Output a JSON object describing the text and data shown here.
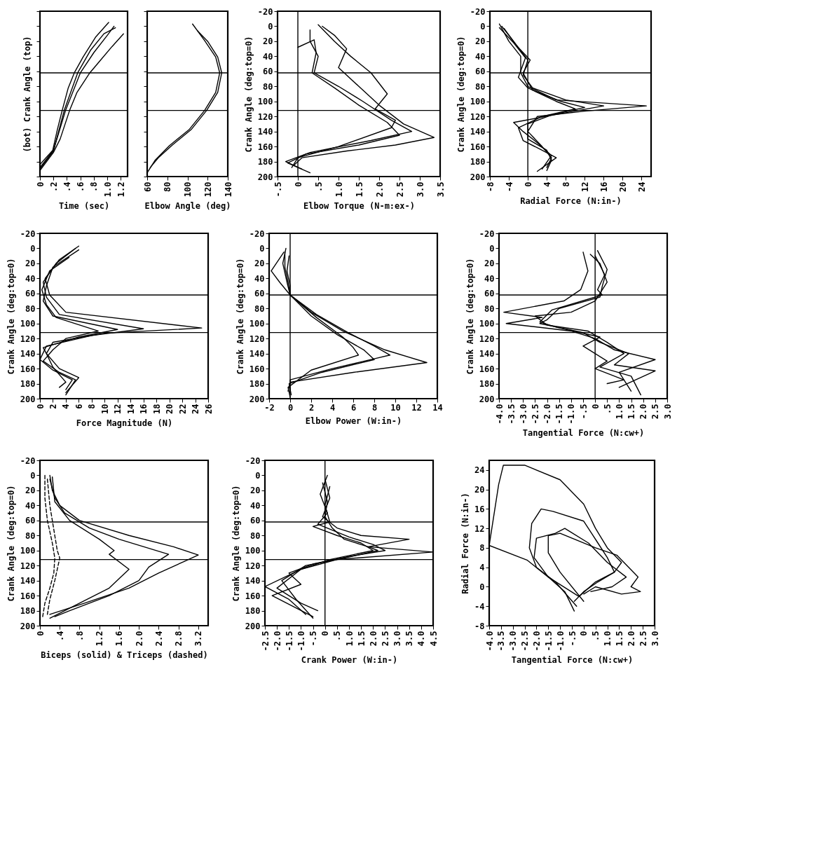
{
  "chart_data": [
    {
      "type": "line",
      "xlabel": "Time (sec)",
      "ylabel": "(bot) Crank Angle (top)",
      "xlim": [
        0,
        1.3
      ],
      "ylim": [
        200,
        -20
      ],
      "xticks": [
        0,
        {
          "value": 0.2,
          "label": ".2"
        },
        {
          "value": 0.4,
          "label": ".4"
        },
        {
          "value": 0.6,
          "label": ".6"
        },
        {
          "value": 0.8,
          "label": ".8"
        },
        {
          "value": 1,
          "label": "1.0"
        },
        {
          "value": 1.2,
          "label": "1.2"
        }
      ],
      "yticks": [
        {
          "value": -20,
          "label": null
        },
        {
          "value": 0,
          "label": null
        },
        {
          "value": 20,
          "label": null
        },
        {
          "value": 40,
          "label": null
        },
        {
          "value": 60,
          "label": null
        },
        {
          "value": 80,
          "label": null
        },
        {
          "value": 100,
          "label": null
        },
        {
          "value": 120,
          "label": null
        },
        {
          "value": 140,
          "label": null
        },
        {
          "value": 160,
          "label": null
        },
        {
          "value": 180,
          "label": null
        },
        {
          "value": 200,
          "label": null
        }
      ],
      "tick_labels": "x",
      "grid": false,
      "legend": false,
      "ref_lines": [
        {
          "axis": "y",
          "value": 62
        },
        {
          "axis": "y",
          "value": 112
        }
      ],
      "series": [
        {
          "color": "#000000",
          "x": [
            0,
            0.19,
            0.26,
            0.33,
            0.42,
            0.51,
            0.64,
            0.83,
            1.02
          ],
          "values": [
            184,
            165,
            137,
            112,
            82,
            62,
            41,
            14,
            -5
          ]
        },
        {
          "color": "#000000",
          "x": [
            0,
            0.2,
            0.3,
            0.44,
            0.55,
            0.74,
            0.9,
            1.07,
            1.24
          ],
          "values": [
            192,
            168,
            150,
            112,
            88,
            62,
            45,
            27,
            10
          ]
        },
        {
          "color": "#000000",
          "x": [
            0,
            0.2,
            0.38,
            0.6,
            0.8,
            1.0,
            1.1
          ],
          "values": [
            188,
            165,
            112,
            62,
            35,
            12,
            0
          ]
        },
        {
          "color": "#000000",
          "x": [
            0,
            0.2,
            0.36,
            0.56,
            0.75,
            0.95,
            1.12
          ],
          "values": [
            190,
            166,
            112,
            62,
            32,
            10,
            2
          ]
        }
      ]
    },
    {
      "type": "line",
      "xlabel": "Elbow Angle (deg)",
      "xlim": [
        60,
        140
      ],
      "ylim": [
        200,
        -20
      ],
      "xticks": [
        60,
        80,
        100,
        120,
        140
      ],
      "yticks": [
        {
          "value": -20,
          "label": null
        },
        {
          "value": 0,
          "label": null
        },
        {
          "value": 20,
          "label": null
        },
        {
          "value": 40,
          "label": null
        },
        {
          "value": 60,
          "label": null
        },
        {
          "value": 80,
          "label": null
        },
        {
          "value": 100,
          "label": null
        },
        {
          "value": 120,
          "label": null
        },
        {
          "value": 140,
          "label": null
        },
        {
          "value": 160,
          "label": null
        },
        {
          "value": 180,
          "label": null
        },
        {
          "value": 200,
          "label": null
        }
      ],
      "tick_labels": "x",
      "grid": false,
      "legend": false,
      "ref_lines": [
        {
          "axis": "y",
          "value": 62
        },
        {
          "axis": "y",
          "value": 112
        }
      ],
      "series": [
        {
          "color": "#000000",
          "x": [
            60,
            68,
            82,
            102,
            117,
            128,
            132,
            128,
            117,
            105
          ],
          "values": [
            195,
            178,
            159,
            137,
            112,
            88,
            62,
            41,
            19,
            -3
          ]
        },
        {
          "color": "#000000",
          "x": [
            63,
            71,
            85,
            104,
            119,
            130,
            134,
            130,
            120,
            110
          ],
          "values": [
            188,
            175,
            158,
            137,
            112,
            88,
            62,
            41,
            20,
            6
          ]
        }
      ]
    },
    {
      "type": "line",
      "xlabel": "Elbow Torque (N-m:ex-)",
      "ylabel": "Crank Angle (deg:top=0)",
      "xlim": [
        -0.5,
        3.5
      ],
      "ylim": [
        200,
        -20
      ],
      "xticks": [
        {
          "value": -0.5,
          "label": "-.5"
        },
        0,
        {
          "value": 0.5,
          "label": ".5"
        },
        {
          "value": 1,
          "label": "1.0"
        },
        1.5,
        {
          "value": 2,
          "label": "2.0"
        },
        2.5,
        {
          "value": 3,
          "label": "3.0"
        },
        3.5
      ],
      "yticks": [
        -20,
        0,
        20,
        40,
        60,
        80,
        100,
        120,
        140,
        160,
        180,
        200
      ],
      "grid": false,
      "legend": false,
      "ref_lines": [
        {
          "axis": "y",
          "value": 62
        },
        {
          "axis": "y",
          "value": 112
        },
        {
          "axis": "x",
          "value": 0
        }
      ],
      "series": [
        {
          "color": "#000000",
          "x": [
            0.6,
            0.9,
            1.2,
            1.0,
            1.5,
            2.0,
            2.6,
            3.35,
            2.4,
            1.2,
            0.1,
            -0.1
          ],
          "values": [
            0,
            12,
            30,
            55,
            80,
            105,
            130,
            148,
            158,
            166,
            175,
            185
          ]
        },
        {
          "color": "#000000",
          "x": [
            0.3,
            0.3,
            0.5,
            0.4,
            1.0,
            1.6,
            2.3,
            2.8,
            1.8,
            0.3,
            -0.3,
            0.1
          ],
          "values": [
            5,
            20,
            40,
            62,
            80,
            100,
            125,
            140,
            152,
            168,
            180,
            190
          ]
        },
        {
          "color": "#000000",
          "x": [
            0.0,
            0.4,
            0.45,
            0.35,
            0.9,
            1.5,
            2.2,
            2.5,
            1.5,
            0.2,
            -0.25,
            0.3
          ],
          "values": [
            28,
            18,
            35,
            62,
            82,
            105,
            128,
            145,
            158,
            170,
            182,
            195
          ]
        },
        {
          "color": "#000000",
          "x": [
            0.5,
            0.9,
            1.3,
            1.8,
            2.2,
            1.9,
            2.4,
            2.3,
            1.0,
            0.0,
            -0.15
          ],
          "values": [
            -2,
            20,
            40,
            62,
            90,
            110,
            125,
            135,
            160,
            175,
            188
          ]
        }
      ]
    },
    {
      "type": "line",
      "xlabel": "Radial Force (N:in-)",
      "ylabel": "Crank Angle (deg:top=0)",
      "xlim": [
        -8,
        26
      ],
      "ylim": [
        200,
        -20
      ],
      "xticks": [
        -8,
        -4,
        0,
        4,
        8,
        12,
        16,
        20,
        24
      ],
      "yticks": [
        -20,
        0,
        20,
        40,
        60,
        80,
        100,
        120,
        140,
        160,
        180,
        200
      ],
      "grid": false,
      "legend": false,
      "ref_lines": [
        {
          "axis": "y",
          "value": 62
        },
        {
          "axis": "y",
          "value": 112
        },
        {
          "axis": "x",
          "value": 0
        }
      ],
      "series": [
        {
          "color": "#000000",
          "x": [
            -6,
            -4,
            -1.5,
            -1.5,
            0,
            6,
            25,
            12,
            2,
            0,
            3,
            5,
            4
          ],
          "values": [
            -3,
            20,
            40,
            62,
            80,
            98,
            106,
            113,
            120,
            140,
            160,
            175,
            188
          ]
        },
        {
          "color": "#000000",
          "x": [
            -5.5,
            -3,
            0,
            -1,
            1,
            8,
            16,
            8,
            -3,
            -1,
            2,
            5,
            3
          ],
          "values": [
            0,
            20,
            45,
            65,
            82,
            98,
            106,
            115,
            128,
            140,
            155,
            172,
            190
          ]
        },
        {
          "color": "#000000",
          "x": [
            -5,
            -2.5,
            0.5,
            -1,
            1,
            7,
            12,
            5,
            0,
            0,
            4,
            5,
            4
          ],
          "values": [
            3,
            25,
            45,
            62,
            85,
            100,
            108,
            118,
            130,
            150,
            165,
            178,
            192
          ]
        },
        {
          "color": "#000000",
          "x": [
            -6,
            -3,
            -0.5,
            -2,
            0,
            6,
            10,
            3,
            -2,
            -1,
            3,
            6,
            2
          ],
          "values": [
            2,
            22,
            42,
            68,
            82,
            100,
            110,
            120,
            135,
            152,
            165,
            175,
            193
          ]
        }
      ]
    },
    {
      "type": "line",
      "xlabel": "Force Magnitude (N)",
      "ylabel": "Crank Angle (deg:top=0)",
      "xlim": [
        0,
        26
      ],
      "ylim": [
        200,
        -20
      ],
      "xticks": [
        0,
        2,
        4,
        6,
        8,
        10,
        12,
        14,
        16,
        18,
        20,
        22,
        24,
        26
      ],
      "yticks": [
        -20,
        0,
        20,
        40,
        60,
        80,
        100,
        120,
        140,
        160,
        180,
        200
      ],
      "grid": false,
      "legend": false,
      "ref_lines": [
        {
          "axis": "y",
          "value": 62
        },
        {
          "axis": "y",
          "value": 112
        }
      ],
      "series": [
        {
          "color": "#000000",
          "x": [
            6,
            3,
            0.8,
            1.5,
            4,
            25,
            10,
            2,
            1,
            3,
            6,
            4
          ],
          "values": [
            -3,
            15,
            40,
            62,
            85,
            106,
            113,
            125,
            140,
            160,
            172,
            192
          ]
        },
        {
          "color": "#000000",
          "x": [
            5.5,
            2.5,
            0.5,
            1,
            3,
            16,
            8,
            1,
            0,
            2,
            5,
            4
          ],
          "values": [
            0,
            20,
            45,
            65,
            88,
            107,
            116,
            130,
            148,
            162,
            175,
            188
          ]
        },
        {
          "color": "#000000",
          "x": [
            6,
            2,
            1,
            0.5,
            2,
            12,
            6,
            0.5,
            1,
            2,
            4,
            3
          ],
          "values": [
            2,
            25,
            50,
            70,
            90,
            108,
            118,
            132,
            140,
            158,
            178,
            185
          ]
        },
        {
          "color": "#000000",
          "x": [
            4.5,
            1.5,
            0.3,
            1,
            2.5,
            9,
            4,
            2,
            0.5,
            3,
            5.5,
            4
          ],
          "values": [
            12,
            30,
            55,
            75,
            92,
            110,
            120,
            135,
            150,
            165,
            175,
            195
          ]
        }
      ]
    },
    {
      "type": "line",
      "xlabel": "Elbow Power (W:in-)",
      "ylabel": "Crank Angle (deg:top=0)",
      "xlim": [
        -2,
        14
      ],
      "ylim": [
        200,
        -20
      ],
      "xticks": [
        -2,
        0,
        2,
        4,
        6,
        8,
        10,
        12,
        14
      ],
      "yticks": [
        -20,
        0,
        20,
        40,
        60,
        80,
        100,
        120,
        140,
        160,
        180,
        200
      ],
      "grid": false,
      "legend": false,
      "ref_lines": [
        {
          "axis": "y",
          "value": 62
        },
        {
          "axis": "y",
          "value": 112
        },
        {
          "axis": "x",
          "value": 0
        }
      ],
      "series": [
        {
          "color": "#000000",
          "x": [
            -0.6,
            -1.8,
            -1,
            0,
            2,
            5,
            9,
            13,
            6,
            0,
            -0.2
          ],
          "values": [
            5,
            30,
            45,
            62,
            85,
            110,
            135,
            152,
            165,
            178,
            190
          ]
        },
        {
          "color": "#000000",
          "x": [
            -0.4,
            -0.7,
            -0.3,
            0,
            2.5,
            5.5,
            8,
            9.5,
            4,
            0,
            0
          ],
          "values": [
            0,
            20,
            45,
            62,
            88,
            112,
            130,
            142,
            160,
            175,
            192
          ]
        },
        {
          "color": "#000000",
          "x": [
            -0.1,
            -0.3,
            0,
            0,
            2,
            4.5,
            7,
            8,
            3,
            -0.1,
            0.1
          ],
          "values": [
            10,
            30,
            50,
            62,
            90,
            115,
            135,
            148,
            165,
            180,
            195
          ]
        },
        {
          "color": "#000000",
          "x": [
            -0.5,
            -0.5,
            -0.2,
            0,
            2.5,
            5,
            6,
            6.5,
            2,
            -0.2,
            0
          ],
          "values": [
            5,
            25,
            45,
            62,
            92,
            118,
            132,
            142,
            162,
            185,
            198
          ]
        }
      ]
    },
    {
      "type": "line",
      "xlabel": "Tangential Force (N:cw+)",
      "ylabel": "Crank Angle (deg:top=0)",
      "xlim": [
        -4,
        3
      ],
      "ylim": [
        200,
        -20
      ],
      "xticks": [
        {
          "value": -4,
          "label": "-4.0"
        },
        -3.5,
        {
          "value": -3,
          "label": "-3.0"
        },
        -2.5,
        {
          "value": -2,
          "label": "-2.0"
        },
        -1.5,
        {
          "value": -1,
          "label": "-1.0"
        },
        {
          "value": -0.5,
          "label": "-.5"
        },
        0,
        {
          "value": 0.5,
          "label": ".5"
        },
        {
          "value": 1,
          "label": "1.0"
        },
        1.5,
        {
          "value": 2,
          "label": "2.0"
        },
        2.5,
        {
          "value": 3,
          "label": "3.0"
        }
      ],
      "yticks": [
        -20,
        0,
        20,
        40,
        60,
        80,
        100,
        120,
        140,
        160,
        180,
        200
      ],
      "grid": false,
      "legend": false,
      "ref_lines": [
        {
          "axis": "y",
          "value": 62
        },
        {
          "axis": "y",
          "value": 112
        },
        {
          "axis": "x",
          "value": 0
        }
      ],
      "series": [
        {
          "color": "#000000",
          "x": [
            -0.5,
            -0.3,
            -0.6,
            -1.3,
            -3.8,
            -2.2,
            -3.7,
            -1,
            0,
            0.8,
            2.5,
            1,
            1.5
          ],
          "values": [
            5,
            30,
            55,
            70,
            85,
            92,
            100,
            110,
            120,
            135,
            148,
            165,
            190
          ]
        },
        {
          "color": "#000000",
          "x": [
            0.1,
            0.5,
            0.3,
            0.2,
            -1.5,
            -2,
            -2.3,
            -0.5,
            0.2,
            1.4,
            0.8,
            2.5,
            1.0
          ],
          "values": [
            3,
            28,
            50,
            65,
            80,
            95,
            100,
            112,
            125,
            140,
            155,
            163,
            185
          ]
        },
        {
          "color": "#000000",
          "x": [
            -0.2,
            0.2,
            0.5,
            0,
            -1,
            -2.5,
            -2,
            -0.3,
            0.5,
            1.2,
            0.2,
            1.5,
            1.9
          ],
          "values": [
            8,
            20,
            45,
            70,
            85,
            90,
            102,
            110,
            125,
            140,
            158,
            170,
            195
          ]
        },
        {
          "color": "#000000",
          "x": [
            0,
            0.4,
            0.1,
            0.3,
            -1.8,
            -2.3,
            -1.6,
            0.2,
            -0.5,
            0.5,
            0,
            1.2,
            0.5
          ],
          "values": [
            10,
            35,
            55,
            62,
            82,
            98,
            105,
            118,
            130,
            150,
            160,
            175,
            180
          ]
        }
      ]
    },
    {
      "type": "line",
      "xlabel": "Biceps (solid) & Triceps (dashed)",
      "ylabel": "Crank Angle (deg:top=0)",
      "xlim": [
        0,
        3.4
      ],
      "ylim": [
        200,
        -20
      ],
      "xticks": [
        0,
        {
          "value": 0.4,
          "label": ".4"
        },
        {
          "value": 0.8,
          "label": ".8"
        },
        1.2,
        1.6,
        {
          "value": 2,
          "label": "2.0"
        },
        2.4,
        2.8,
        3.2
      ],
      "yticks": [
        -20,
        0,
        20,
        40,
        60,
        80,
        100,
        120,
        140,
        160,
        180,
        200
      ],
      "grid": false,
      "legend": false,
      "ref_lines": [
        {
          "axis": "y",
          "value": 62
        },
        {
          "axis": "y",
          "value": 112
        }
      ],
      "series": [
        {
          "color": "#000000",
          "x": [
            0.2,
            0.25,
            0.4,
            0.8,
            1.8,
            2.7,
            3.2,
            2.9,
            2.4,
            1.8,
            0.9,
            0.2
          ],
          "values": [
            0,
            20,
            40,
            60,
            80,
            95,
            106,
            115,
            130,
            150,
            170,
            185
          ]
        },
        {
          "color": "#000000",
          "x": [
            0.2,
            0.3,
            0.5,
            1.0,
            1.6,
            2.6,
            2.2,
            2.0,
            1.4,
            0.6,
            0.3
          ],
          "values": [
            5,
            30,
            50,
            70,
            85,
            105,
            122,
            140,
            160,
            180,
            188
          ]
        },
        {
          "color": "#000000",
          "x": [
            0.25,
            0.3,
            0.6,
            1.2,
            1.5,
            1.4,
            1.8,
            1.4,
            0.8,
            0.2
          ],
          "values": [
            2,
            35,
            60,
            85,
            100,
            105,
            125,
            150,
            170,
            190
          ]
        },
        {
          "color": "#000000",
          "line_style": "dashed",
          "x": [
            0.1,
            0.1,
            0.15,
            0.25,
            0.3,
            0.28,
            0.2,
            0.1,
            0.05
          ],
          "values": [
            0,
            30,
            60,
            90,
            110,
            130,
            150,
            170,
            190
          ]
        },
        {
          "color": "#000000",
          "line_style": "dashed",
          "x": [
            0.15,
            0.2,
            0.3,
            0.35,
            0.4,
            0.3,
            0.2,
            0.15
          ],
          "values": [
            5,
            40,
            80,
            100,
            110,
            140,
            165,
            185
          ]
        }
      ]
    },
    {
      "type": "line",
      "xlabel": "Crank Power (W:in-)",
      "ylabel": "Crank Angle (deg:top=0)",
      "xlim": [
        -2.5,
        4.5
      ],
      "ylim": [
        200,
        -20
      ],
      "xticks": [
        -2.5,
        {
          "value": -2,
          "label": "-2.0"
        },
        -1.5,
        {
          "value": -1,
          "label": "-1.0"
        },
        {
          "value": -0.5,
          "label": "-.5"
        },
        0,
        {
          "value": 0.5,
          "label": ".5"
        },
        {
          "value": 1,
          "label": "1.0"
        },
        1.5,
        {
          "value": 2,
          "label": "2.0"
        },
        2.5,
        {
          "value": 3,
          "label": "3.0"
        },
        3.5,
        {
          "value": 4,
          "label": "4.0"
        },
        4.5
      ],
      "yticks": [
        -20,
        0,
        20,
        40,
        60,
        80,
        100,
        120,
        140,
        160,
        180,
        200
      ],
      "grid": false,
      "legend": false,
      "ref_lines": [
        {
          "axis": "y",
          "value": 62
        },
        {
          "axis": "y",
          "value": 112
        },
        {
          "axis": "x",
          "value": 0
        }
      ],
      "series": [
        {
          "color": "#000000",
          "x": [
            0,
            0.2,
            -0.1,
            0.5,
            1.5,
            3.5,
            1.8,
            4.5,
            0.5,
            -1,
            -2.5,
            -1.5,
            -0.8
          ],
          "values": [
            5,
            30,
            55,
            70,
            80,
            85,
            95,
            102,
            112,
            125,
            148,
            165,
            185
          ]
        },
        {
          "color": "#000000",
          "x": [
            0.1,
            -0.2,
            0.1,
            -0.3,
            1,
            2,
            2.5,
            1,
            -0.5,
            -1.5,
            -1,
            -2.2,
            -0.5
          ],
          "values": [
            0,
            25,
            50,
            65,
            82,
            92,
            100,
            108,
            118,
            130,
            145,
            160,
            188
          ]
        },
        {
          "color": "#000000",
          "x": [
            -0.1,
            0.1,
            0,
            0.3,
            0.8,
            1.8,
            2.2,
            0.8,
            -0.8,
            -1.8,
            -1.2,
            -0.5
          ],
          "values": [
            10,
            35,
            55,
            70,
            85,
            95,
            100,
            110,
            120,
            140,
            165,
            190
          ]
        },
        {
          "color": "#000000",
          "x": [
            0.2,
            0,
            0.2,
            -0.5,
            0.5,
            1.5,
            2.0,
            0.2,
            -1.0,
            -2.0,
            -1.0,
            -0.3
          ],
          "values": [
            15,
            40,
            62,
            68,
            80,
            90,
            100,
            112,
            125,
            150,
            170,
            180
          ]
        }
      ]
    },
    {
      "type": "line",
      "xlabel": "Tangential Force (N:cw+)",
      "ylabel": "Radial Force (N:in-)",
      "xlim": [
        -4,
        3
      ],
      "ylim": [
        -8,
        26
      ],
      "xticks": [
        {
          "value": -4,
          "label": "-4.0"
        },
        -3.5,
        {
          "value": -3,
          "label": "-3.0"
        },
        -2.5,
        {
          "value": -2,
          "label": "-2.0"
        },
        -1.5,
        {
          "value": -1,
          "label": "-1.0"
        },
        {
          "value": -0.5,
          "label": "-.5"
        },
        0,
        {
          "value": 0.5,
          "label": ".5"
        },
        {
          "value": 1,
          "label": "1.0"
        },
        1.5,
        {
          "value": 2,
          "label": "2.0"
        },
        2.5,
        {
          "value": 3,
          "label": "3.0"
        }
      ],
      "yticks": [
        -8,
        -4,
        0,
        4,
        8,
        12,
        16,
        20,
        24
      ],
      "grid": false,
      "legend": false,
      "series": [
        {
          "color": "#000000",
          "x": [
            -0.4,
            -0.8,
            -1.5,
            -2.4,
            -4,
            -3.6,
            -3.4,
            -2.5,
            -1.0,
            0.0,
            0.5,
            1.0,
            1.6,
            1.3,
            0.5,
            -0.2
          ],
          "values": [
            -5,
            -1,
            2,
            5.5,
            8.5,
            21,
            25,
            25,
            22,
            17,
            12,
            8,
            5,
            3,
            1,
            -2
          ]
        },
        {
          "color": "#000000",
          "x": [
            -0.3,
            -1.2,
            -2.0,
            -2.3,
            -2.2,
            -1.8,
            -1.3,
            0,
            0.6,
            1.0,
            1.3,
            0.6,
            0,
            -0.4
          ],
          "values": [
            -4,
            1,
            4,
            8,
            13,
            16,
            15.5,
            13.5,
            9,
            6,
            3,
            1,
            -1,
            -3
          ]
        },
        {
          "color": "#000000",
          "x": [
            -0.2,
            -1.5,
            -2.1,
            -2.0,
            -1.2,
            -0.8,
            0.2,
            1.0,
            1.8,
            1.2,
            0.3
          ],
          "values": [
            -2,
            2,
            6,
            10,
            11,
            12,
            9,
            5,
            2,
            0,
            -1
          ]
        },
        {
          "color": "#000000",
          "x": [
            0,
            -1.0,
            -1.5,
            -1.5,
            -1.0,
            0.5,
            1.4,
            2.3,
            2.0,
            2.4,
            1.6,
            0.5,
            0.0
          ],
          "values": [
            -3,
            3,
            7,
            10.5,
            11,
            8,
            6.5,
            2,
            0,
            -1,
            -1.5,
            0,
            -1.5
          ]
        }
      ]
    }
  ]
}
